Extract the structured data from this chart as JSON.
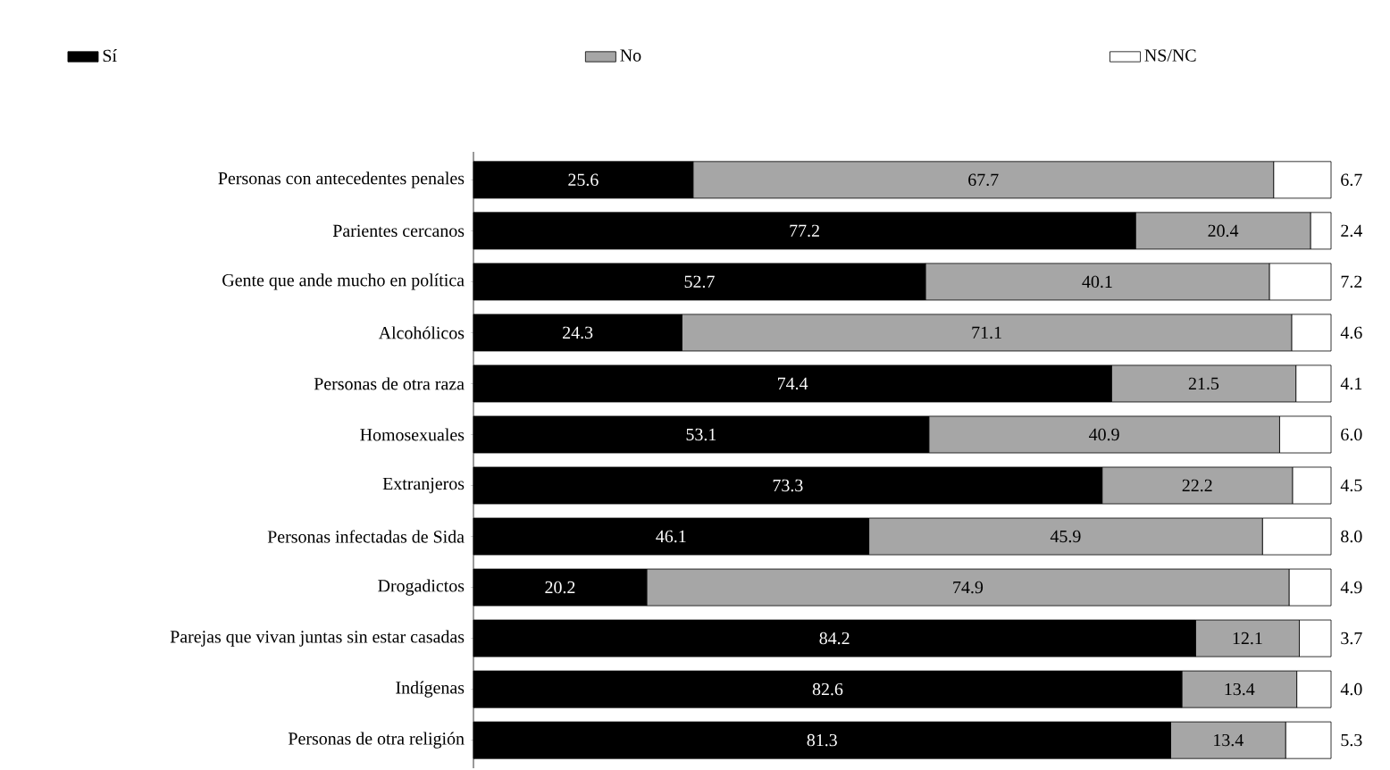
{
  "chart_data": {
    "type": "bar",
    "orientation": "horizontal",
    "stacked": true,
    "legend": "top",
    "tick_labels": "y",
    "xlim": [
      0,
      100
    ],
    "categories": [
      "Personas con antecedentes penales",
      "Parientes cercanos",
      "Gente que ande mucho en política",
      "Alcohólicos",
      "Personas de otra raza",
      "Homosexuales",
      "Extranjeros",
      "Personas infectadas de Sida",
      "Drogadictos",
      "Parejas que vivan juntas sin estar casadas",
      "Indígenas",
      "Personas de otra religión"
    ],
    "series": [
      {
        "name": "Sí",
        "color": "#000000",
        "values": [
          25.6,
          77.2,
          52.7,
          24.3,
          74.4,
          53.1,
          73.3,
          46.1,
          20.2,
          84.2,
          82.6,
          81.3
        ],
        "value_labels": [
          "25.6",
          "77.2",
          "52.7",
          "24.3",
          "74.4",
          "53.1",
          "73.3",
          "46.1",
          "20.2",
          "84.2",
          "82.6",
          "81.3"
        ]
      },
      {
        "name": "No",
        "color": "#a6a6a6",
        "values": [
          67.7,
          20.4,
          40.1,
          71.1,
          21.5,
          40.9,
          22.2,
          45.9,
          74.9,
          12.1,
          13.4,
          13.4
        ],
        "value_labels": [
          "67.7",
          "20.4",
          "40.1",
          "71.1",
          "21.5",
          "40.9",
          "22.2",
          "45.9",
          "74.9",
          "12.1",
          "13.4",
          "13.4"
        ]
      },
      {
        "name": "NS/NC",
        "color": "#ffffff",
        "values": [
          6.7,
          2.4,
          7.2,
          4.6,
          4.1,
          6.0,
          4.5,
          8.0,
          4.9,
          3.7,
          4.0,
          5.3
        ],
        "value_labels": [
          "6.7",
          "2.4",
          "7.2",
          "4.6",
          "4.1",
          "6.0",
          "4.5",
          "8.0",
          "4.9",
          "3.7",
          "4.0",
          "5.3"
        ]
      }
    ]
  }
}
